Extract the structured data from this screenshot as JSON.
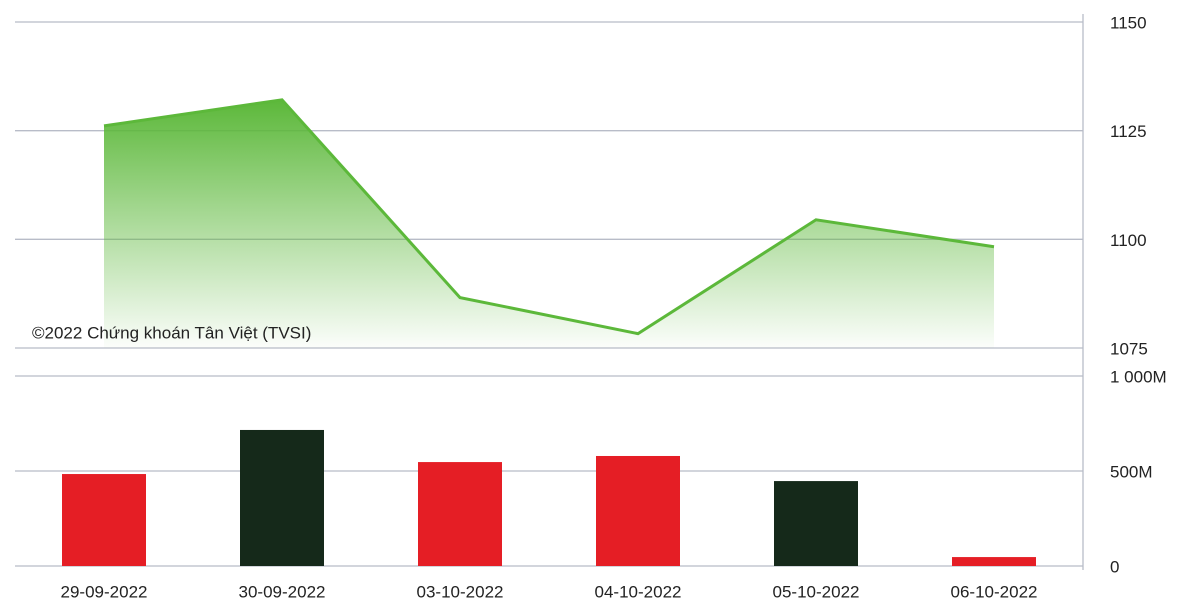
{
  "chart_data": [
    {
      "type": "area",
      "values": [
        1126.1,
        1132.1,
        1086.6,
        1078.3,
        1104.5,
        1098.3
      ],
      "color": "#5cb83a",
      "ylim": [
        1075,
        1150
      ],
      "yticks": [
        1075,
        1100,
        1125,
        1150
      ],
      "grid": true,
      "annotation": "©2022 Chứng khoán Tân Việt (TVSI)"
    },
    {
      "type": "bar",
      "categories": [
        "29-09-2022",
        "30-09-2022",
        "03-10-2022",
        "04-10-2022",
        "05-10-2022",
        "06-10-2022"
      ],
      "values": [
        484,
        716,
        547,
        579,
        447,
        47
      ],
      "colors": [
        "#e51e25",
        "#15291a",
        "#e51e25",
        "#e51e25",
        "#15291a",
        "#e51e25"
      ],
      "ylim": [
        0,
        1000
      ],
      "yticks": [
        0,
        {
          "value": 500,
          "label": "500M"
        },
        {
          "value": 1000,
          "label": "1 000M"
        }
      ],
      "grid": true
    }
  ]
}
